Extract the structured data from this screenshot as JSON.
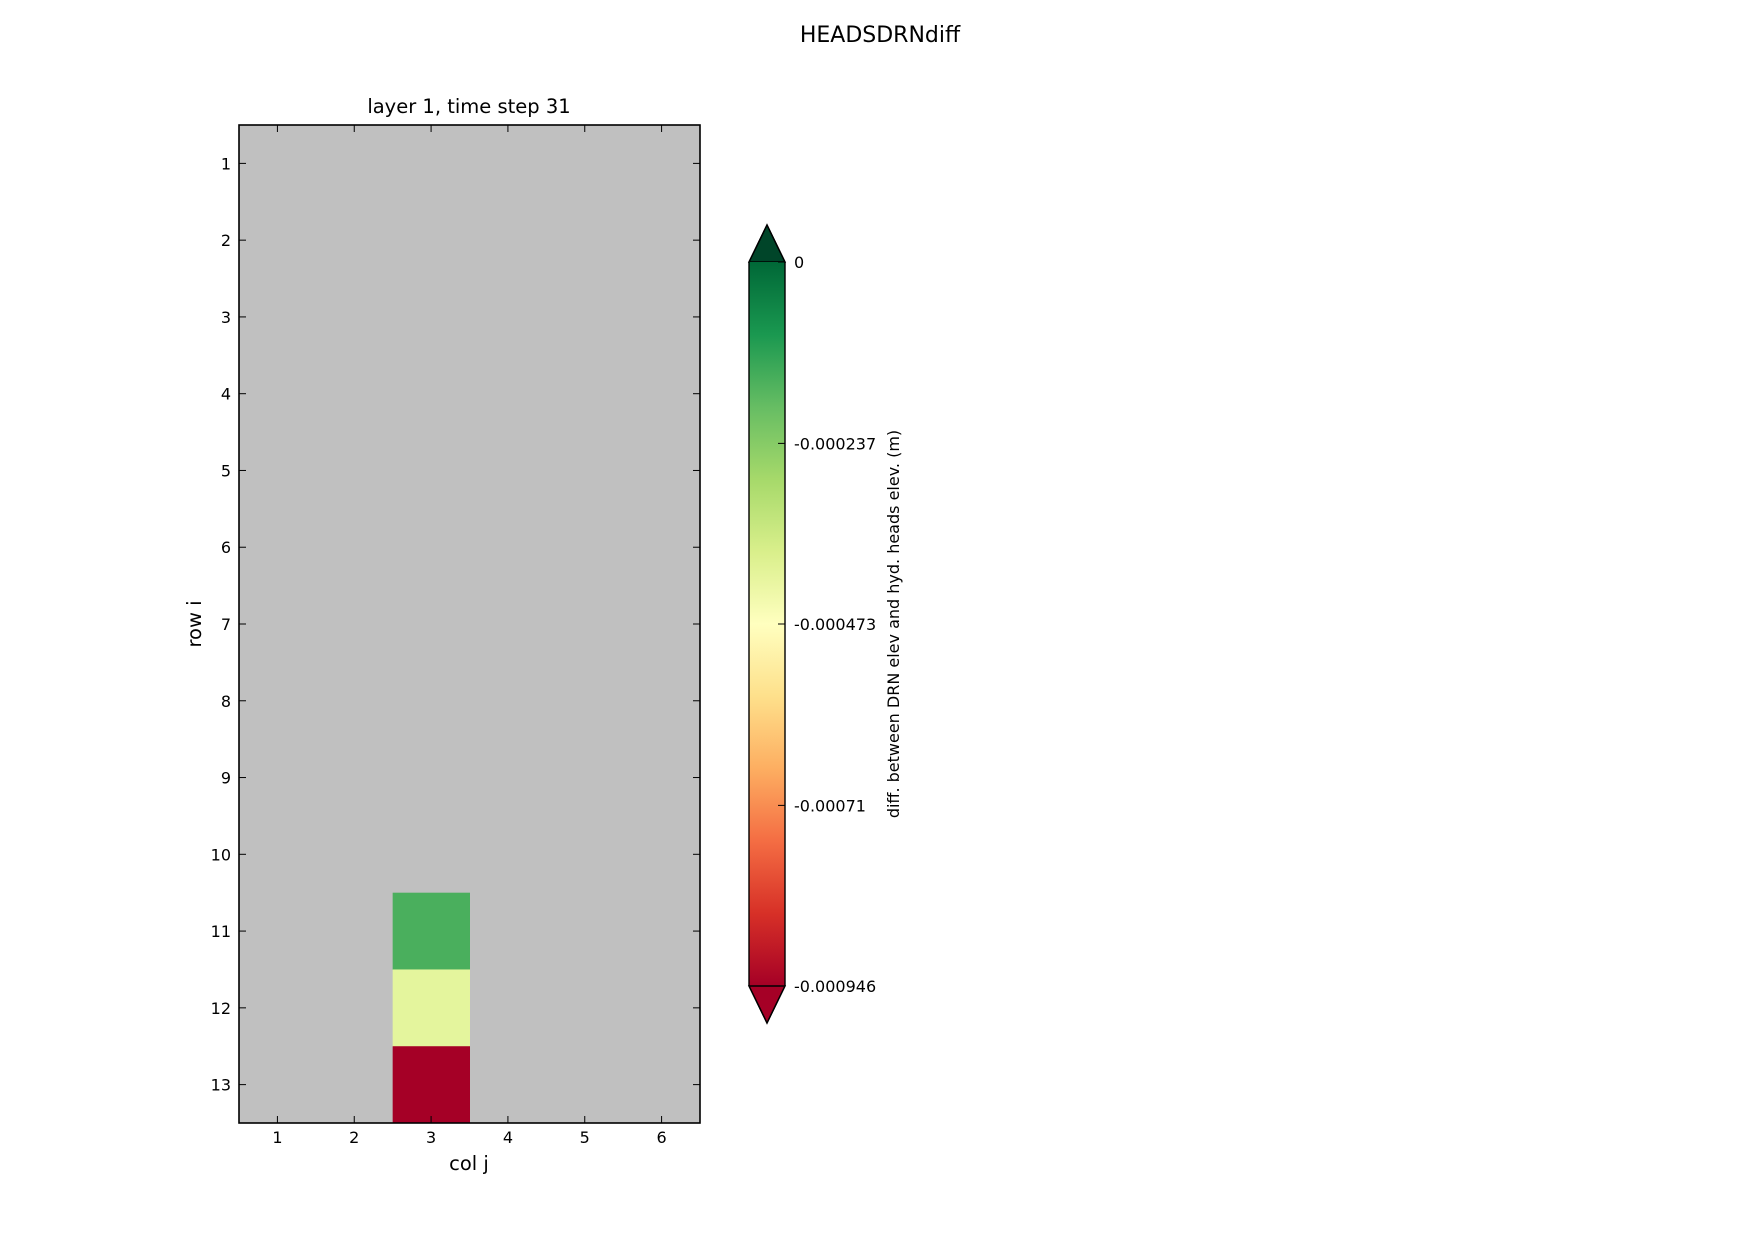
{
  "figure": {
    "suptitle": "HEADSDRNdiff"
  },
  "chart_data": {
    "type": "heatmap",
    "title": "layer 1, time step 31",
    "xlabel": "col j",
    "ylabel": "row i",
    "x_ticks": [
      "1",
      "2",
      "3",
      "4",
      "5",
      "6"
    ],
    "y_ticks": [
      "1",
      "2",
      "3",
      "4",
      "5",
      "6",
      "7",
      "8",
      "9",
      "10",
      "11",
      "12",
      "13"
    ],
    "n_cols": 6,
    "n_rows": 13,
    "background_color": "#c0c0c0",
    "cells": [
      {
        "row": 11,
        "col": 3,
        "value": -0.00021,
        "color": "#4aaf5d"
      },
      {
        "row": 12,
        "col": 3,
        "value": -0.00041,
        "color": "#e4f59d"
      },
      {
        "row": 13,
        "col": 3,
        "value": -0.000946,
        "color": "#a50026"
      }
    ],
    "colorbar": {
      "label": "diff. between DRN elev and hyd. heads elev. (m)",
      "colormap": "RdYlGn",
      "extend": "both",
      "vmin": -0.000946,
      "vmax": 0,
      "ticks": [
        {
          "value": 0,
          "label": "0"
        },
        {
          "value": -0.000237,
          "label": "-0.000237"
        },
        {
          "value": -0.000473,
          "label": "-0.000473"
        },
        {
          "value": -0.00071,
          "label": "-0.00071"
        },
        {
          "value": -0.000946,
          "label": "-0.000946"
        }
      ]
    }
  }
}
